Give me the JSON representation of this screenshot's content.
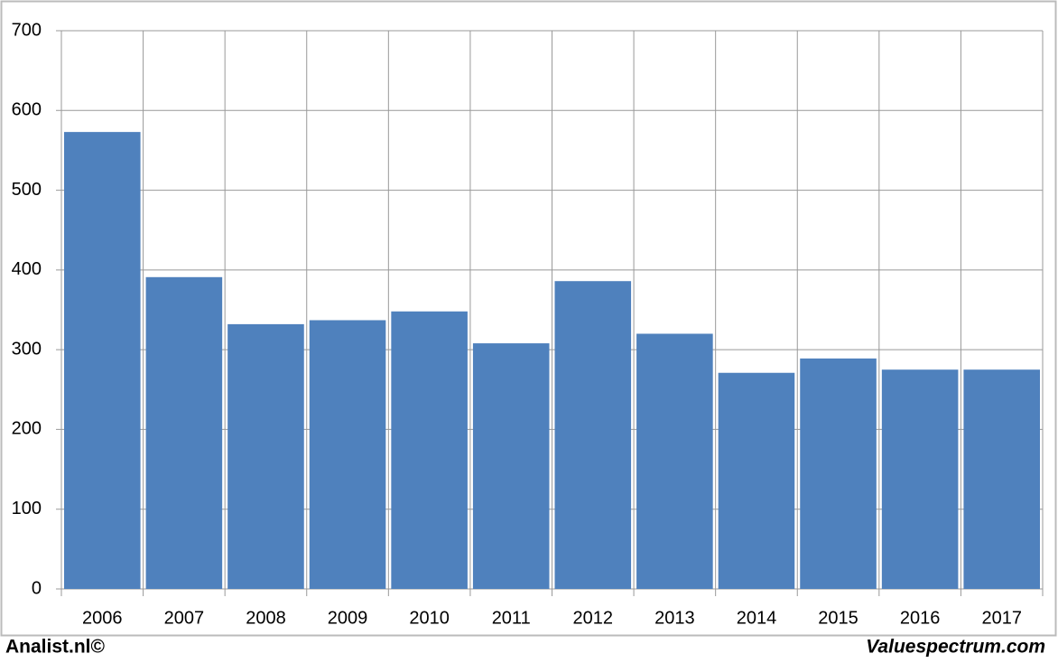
{
  "chart_data": {
    "type": "bar",
    "categories": [
      "2006",
      "2007",
      "2008",
      "2009",
      "2010",
      "2011",
      "2012",
      "2013",
      "2014",
      "2015",
      "2016",
      "2017"
    ],
    "values": [
      573,
      391,
      332,
      337,
      348,
      308,
      386,
      320,
      271,
      289,
      275,
      275
    ],
    "color": "#4f81bd",
    "ylim": [
      0,
      700
    ],
    "yticks": [
      0,
      100,
      200,
      300,
      400,
      500,
      600,
      700
    ],
    "grid": true
  },
  "footer": {
    "left": "Analist.nl©",
    "right": "Valuespectrum.com"
  }
}
